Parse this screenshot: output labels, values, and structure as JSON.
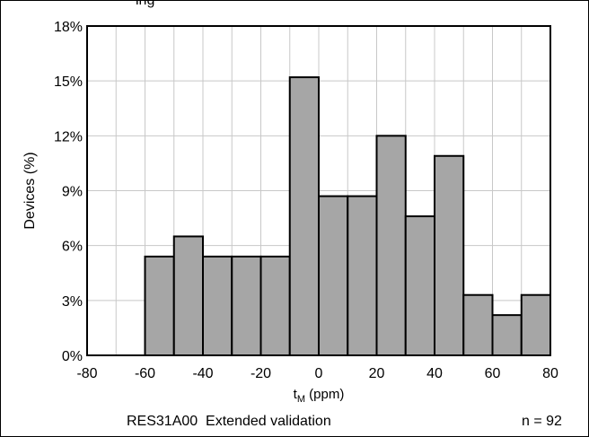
{
  "chart_data": {
    "type": "bar",
    "top_text": "ing",
    "ylabel": "Devices (%)",
    "xlabel": "t",
    "xlabel_sub": "M",
    "xlabel_unit": " (ppm)",
    "xlim": [
      -80,
      80
    ],
    "ylim": [
      0,
      18
    ],
    "xticks": [
      -80,
      -60,
      -40,
      -20,
      0,
      20,
      40,
      60,
      80
    ],
    "yticks": [
      0,
      3,
      6,
      9,
      12,
      15,
      18
    ],
    "ytick_suffix": "%",
    "minor_x_step": 10,
    "bin_width": 10,
    "bins": [
      {
        "x0": -60,
        "value": 5.4
      },
      {
        "x0": -50,
        "value": 6.5
      },
      {
        "x0": -40,
        "value": 5.4
      },
      {
        "x0": -30,
        "value": 5.4
      },
      {
        "x0": -20,
        "value": 5.4
      },
      {
        "x0": -10,
        "value": 15.2
      },
      {
        "x0": 0,
        "value": 8.7
      },
      {
        "x0": 10,
        "value": 8.7
      },
      {
        "x0": 20,
        "value": 12.0
      },
      {
        "x0": 30,
        "value": 7.6
      },
      {
        "x0": 40,
        "value": 10.9
      },
      {
        "x0": 50,
        "value": 3.3
      },
      {
        "x0": 60,
        "value": 2.2
      },
      {
        "x0": 70,
        "value": 3.3
      }
    ],
    "grid": true,
    "footer_title": "RES31A00  Extended validation",
    "footer_n": "n = 92",
    "colors": {
      "bar": "#a6a6a6",
      "edge": "#000000",
      "grid": "#c8c8c8"
    }
  }
}
